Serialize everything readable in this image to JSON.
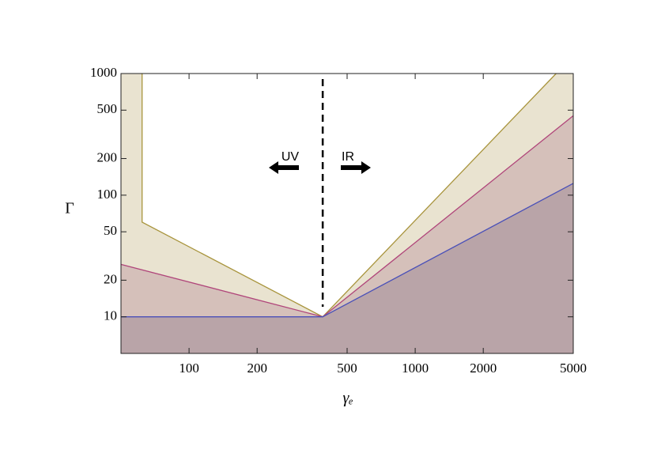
{
  "chart_data": {
    "type": "line",
    "x_label": "γₑ",
    "y_label": "Γ",
    "xlim": [
      50,
      5000
    ],
    "ylim": [
      5,
      1000
    ],
    "xticks": [
      100,
      200,
      500,
      1000,
      2000,
      5000
    ],
    "yticks": [
      10,
      20,
      50,
      100,
      200,
      500,
      1000
    ],
    "log_x": true,
    "log_y": true,
    "series": [
      {
        "color": "#a8943c",
        "fill": "#e9e3d0",
        "x": [
          62,
          62,
          390,
          4200
        ],
        "values": [
          1000,
          60,
          10,
          1000
        ]
      },
      {
        "color": "#b0457a",
        "fill": "#d5c0ba",
        "x": [
          50,
          390,
          5000
        ],
        "values": [
          27,
          10,
          450
        ]
      },
      {
        "color": "#4a50b8",
        "fill": "#b9a4a8",
        "x": [
          50,
          390,
          5000
        ],
        "values": [
          10,
          10,
          125
        ]
      }
    ],
    "divider_x": 390,
    "annotations": [
      {
        "text": "UV",
        "direction": "left"
      },
      {
        "text": "IR",
        "direction": "right"
      }
    ]
  }
}
